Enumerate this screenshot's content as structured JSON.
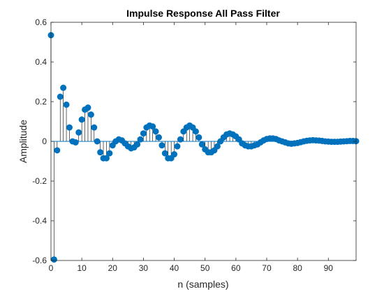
{
  "chart_data": {
    "type": "stem",
    "title": "Impulse Response All Pass Filter",
    "xlabel": "n (samples)",
    "ylabel": "Amplitude",
    "xlim": [
      0,
      99
    ],
    "ylim": [
      -0.6,
      0.6
    ],
    "xticks": [
      0,
      10,
      20,
      30,
      40,
      50,
      60,
      70,
      80,
      90
    ],
    "yticks": [
      -0.6,
      -0.4,
      -0.2,
      0,
      0.2,
      0.4,
      0.6
    ],
    "xtick_labels": [
      "0",
      "10",
      "20",
      "30",
      "40",
      "50",
      "60",
      "70",
      "80",
      "90"
    ],
    "ytick_labels": [
      "-0.6",
      "-0.4",
      "-0.2",
      "0",
      "0.2",
      "0.4",
      "0.6"
    ],
    "color": "#0072BD",
    "series": [
      {
        "x": [
          0,
          1,
          2,
          3,
          4,
          5,
          6,
          7,
          8,
          9,
          10,
          11,
          12,
          13,
          14,
          15,
          16,
          17,
          18,
          19,
          20,
          21,
          22,
          23,
          24,
          25,
          26,
          27,
          28,
          29,
          30,
          31,
          32,
          33,
          34,
          35,
          36,
          37,
          38,
          39,
          40,
          41,
          42,
          43,
          44,
          45,
          46,
          47,
          48,
          49,
          50,
          51,
          52,
          53,
          54,
          55,
          56,
          57,
          58,
          59,
          60,
          61,
          62,
          63,
          64,
          65,
          66,
          67,
          68,
          69,
          70,
          71,
          72,
          73,
          74,
          75,
          76,
          77,
          78,
          79,
          80,
          81,
          82,
          83,
          84,
          85,
          86,
          87,
          88,
          89,
          90,
          91,
          92,
          93,
          94,
          95,
          96,
          97,
          98,
          99
        ],
        "y": [
          0.535,
          -0.595,
          -0.045,
          0.225,
          0.27,
          0.185,
          0.07,
          0.0,
          -0.005,
          0.045,
          0.11,
          0.16,
          0.17,
          0.135,
          0.07,
          0.0,
          -0.055,
          -0.085,
          -0.085,
          -0.06,
          -0.02,
          0.0,
          0.01,
          0.005,
          -0.01,
          -0.025,
          -0.035,
          -0.03,
          -0.015,
          0.01,
          0.04,
          0.07,
          0.08,
          0.075,
          0.05,
          0.02,
          -0.02,
          -0.06,
          -0.085,
          -0.085,
          -0.065,
          -0.025,
          0.01,
          0.05,
          0.07,
          0.08,
          0.07,
          0.05,
          0.02,
          -0.015,
          -0.04,
          -0.055,
          -0.055,
          -0.045,
          -0.025,
          0.0,
          0.02,
          0.035,
          0.04,
          0.035,
          0.025,
          0.01,
          -0.01,
          -0.02,
          -0.025,
          -0.025,
          -0.02,
          -0.015,
          -0.005,
          0.005,
          0.012,
          0.015,
          0.015,
          0.012,
          0.005,
          0.0,
          -0.005,
          -0.01,
          -0.012,
          -0.01,
          -0.008,
          -0.004,
          0.0,
          0.003,
          0.005,
          0.006,
          0.005,
          0.004,
          0.002,
          0.0,
          -0.001,
          -0.002,
          -0.002,
          -0.002,
          -0.001,
          0.0,
          0.001,
          0.002,
          0.002,
          0.001
        ]
      }
    ],
    "grid": false,
    "legend": "none"
  }
}
